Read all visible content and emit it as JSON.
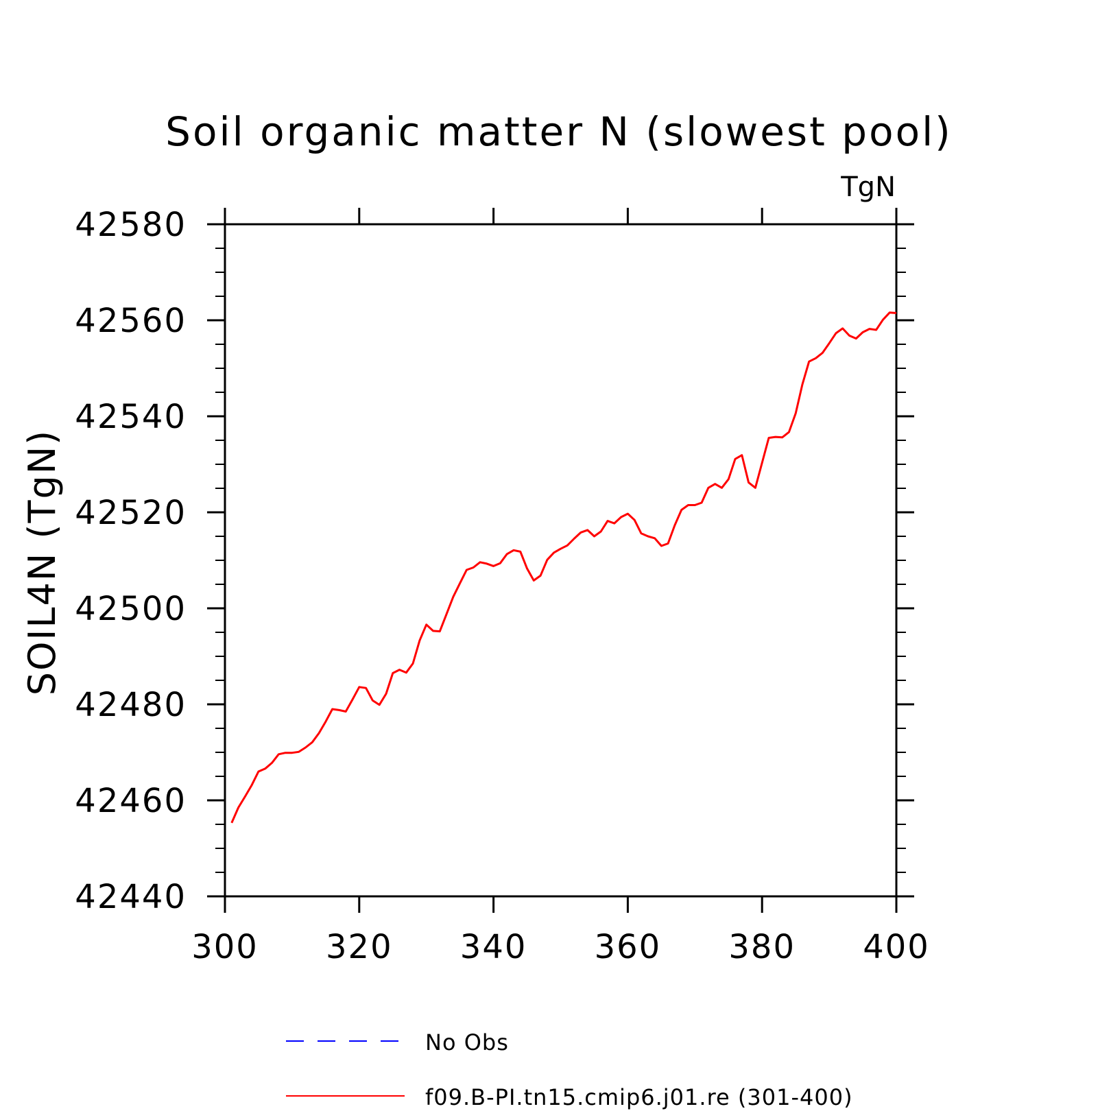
{
  "chart_data": {
    "type": "line",
    "title": "Soil organic matter N (slowest pool)",
    "units_label": "TgN",
    "ylabel": "SOIL4N   (TgN)",
    "xlabel": "",
    "xlim": [
      300,
      400
    ],
    "ylim": [
      42440,
      42580
    ],
    "xticks": [
      300,
      320,
      340,
      360,
      380,
      400
    ],
    "yticks": [
      42440,
      42460,
      42480,
      42500,
      42520,
      42540,
      42560,
      42580
    ],
    "grid": false,
    "legend_position": "bottom",
    "legend": [
      {
        "label": "No Obs",
        "color": "#0000ff",
        "style": "dashed"
      },
      {
        "label": "f09.B-PI.tn15.cmip6.j01.re (301-400)",
        "color": "#ff0000",
        "style": "solid"
      }
    ],
    "series": [
      {
        "name": "f09.B-PI.tn15.cmip6.j01.re (301-400)",
        "color": "#ff0000",
        "x": [
          301,
          302,
          303,
          304,
          305,
          306,
          307,
          308,
          309,
          310,
          311,
          312,
          313,
          314,
          315,
          316,
          317,
          318,
          319,
          320,
          321,
          322,
          323,
          324,
          325,
          326,
          327,
          328,
          329,
          330,
          331,
          332,
          333,
          334,
          335,
          336,
          337,
          338,
          339,
          340,
          341,
          342,
          343,
          344,
          345,
          346,
          347,
          348,
          349,
          350,
          351,
          352,
          353,
          354,
          355,
          356,
          357,
          358,
          359,
          360,
          361,
          362,
          363,
          364,
          365,
          366,
          367,
          368,
          369,
          370,
          371,
          372,
          373,
          374,
          375,
          376,
          377,
          378,
          379,
          380,
          381,
          382,
          383,
          384,
          385,
          386,
          387,
          388,
          389,
          390,
          391,
          392,
          393,
          394,
          395,
          396,
          397,
          398,
          399,
          400
        ],
        "y": [
          42455.3,
          42458.5,
          42460.8,
          42463.2,
          42466.0,
          42466.6,
          42467.8,
          42469.6,
          42469.9,
          42469.9,
          42470.1,
          42471.0,
          42472.1,
          42474.0,
          42476.4,
          42479.0,
          42478.8,
          42478.5,
          42481.0,
          42483.6,
          42483.4,
          42480.8,
          42479.9,
          42482.2,
          42486.5,
          42487.2,
          42486.6,
          42488.5,
          42493.3,
          42496.6,
          42495.3,
          42495.2,
          42498.8,
          42502.4,
          42505.2,
          42508.0,
          42508.5,
          42509.6,
          42509.3,
          42508.8,
          42509.4,
          42511.3,
          42512.1,
          42511.8,
          42508.3,
          42505.8,
          42506.8,
          42510.1,
          42511.6,
          42512.4,
          42513.1,
          42514.5,
          42515.8,
          42516.3,
          42515.0,
          42516.0,
          42518.2,
          42517.7,
          42519.0,
          42519.7,
          42518.4,
          42515.6,
          42515.0,
          42514.6,
          42513.0,
          42513.5,
          42517.3,
          42520.5,
          42521.5,
          42521.5,
          42522.0,
          42525.1,
          42525.9,
          42525.1,
          42526.9,
          42531.1,
          42531.9,
          42526.2,
          42525.1,
          42530.3,
          42535.5,
          42535.7,
          42535.6,
          42536.7,
          42540.6,
          42546.6,
          42551.4,
          42552.1,
          42553.2,
          42555.2,
          42557.3,
          42558.3,
          42556.8,
          42556.2,
          42557.5,
          42558.2,
          42558.0,
          42560.1,
          42561.6,
          42561.5
        ]
      },
      {
        "name": "No Obs",
        "color": "#0000ff",
        "x": [],
        "y": []
      }
    ]
  }
}
